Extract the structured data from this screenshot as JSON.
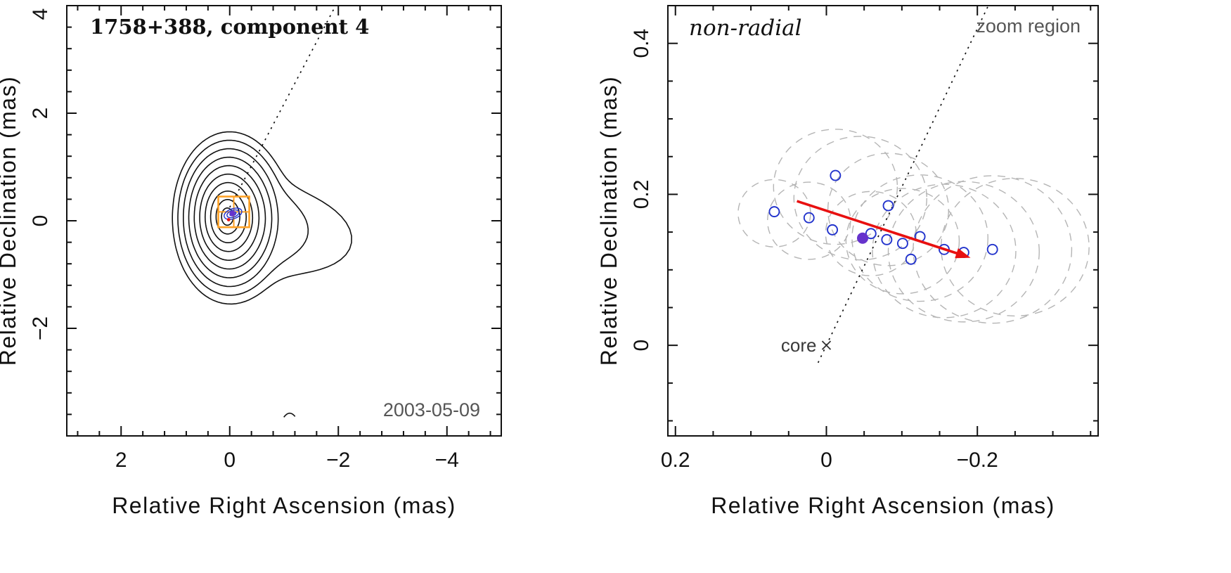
{
  "figure": {
    "description": "Two-panel VLBI jet component kinematics figure",
    "colors": {
      "frame": "#111111",
      "contour": "#111111",
      "zoom_box": "#ffa126",
      "open_point": "#2233cc",
      "filled_point": "#6633cc",
      "error_ellipse": "#b5b5b5",
      "arrow": "#e81010",
      "muted_text": "#565656"
    }
  },
  "chart_data": [
    {
      "type": "contour",
      "title": "1758+388, component 4",
      "date_label": "2003-05-09",
      "xlabel": "Relative Right Ascension (mas)",
      "ylabel": "Relative Declination (mas)",
      "xlim": [
        3,
        -5
      ],
      "ylim": [
        -4,
        4
      ],
      "xticks": {
        "major": [
          2,
          0,
          -2,
          -4
        ],
        "minor_step": 0.4
      },
      "yticks": {
        "major": [
          4,
          2,
          0,
          -2
        ],
        "minor_step": 0.4
      },
      "contours": {
        "center": [
          0.05,
          0.08
        ],
        "n_levels": 10,
        "rx": 1.0,
        "ry": 1.5,
        "east_skew": 0.18,
        "tail": {
          "direction_deg": -12,
          "levels": 2,
          "extra": [
            1.15,
            0.45
          ],
          "width_rad": 0.32
        }
      },
      "zoom_box": {
        "x": [
          0.21,
          -0.36
        ],
        "y": [
          -0.12,
          0.45
        ]
      },
      "inner_component": {
        "center": [
          -0.06,
          0.13
        ],
        "ellipses_rx": [
          0.17,
          0.115,
          0.06
        ],
        "aspect": 0.55,
        "tilt_deg": -20,
        "peak": [
          -0.05,
          0.135
        ],
        "red_mark": [
          0.02,
          0.02
        ]
      },
      "radial_line": [
        [
          0.0,
          0.25
        ],
        [
          -1.95,
          4.0
        ]
      ],
      "bottom_arc": {
        "center": [
          -1.1,
          -3.6
        ]
      }
    },
    {
      "type": "scatter",
      "corner_label": "non-radial",
      "zoom_label": "zoom region",
      "core_label": "core",
      "xlabel": "Relative Right Ascension (mas)",
      "ylabel": "Relative Declination (mas)",
      "xlim": [
        0.21,
        -0.36
      ],
      "ylim": [
        -0.12,
        0.45
      ],
      "xticks": {
        "major": [
          0.2,
          0,
          -0.2
        ],
        "minor_step": 0.05
      },
      "yticks": {
        "major": [
          0,
          0.2,
          0.4
        ],
        "minor_step": 0.05
      },
      "points": [
        [
          0.069,
          0.177
        ],
        [
          0.023,
          0.169
        ],
        [
          -0.012,
          0.225
        ],
        [
          -0.008,
          0.153
        ],
        [
          -0.059,
          0.148
        ],
        [
          -0.082,
          0.185
        ],
        [
          -0.08,
          0.14
        ],
        [
          -0.101,
          0.135
        ],
        [
          -0.124,
          0.144
        ],
        [
          -0.112,
          0.114
        ],
        [
          -0.156,
          0.127
        ],
        [
          -0.182,
          0.123
        ],
        [
          -0.22,
          0.127
        ]
      ],
      "filled_point": [
        -0.048,
        0.142
      ],
      "error_ellipses": [
        [
          0.069,
          0.175,
          0.048
        ],
        [
          0.023,
          0.165,
          0.055
        ],
        [
          -0.012,
          0.21,
          0.082
        ],
        [
          -0.045,
          0.195,
          0.088
        ],
        [
          -0.059,
          0.148,
          0.06
        ],
        [
          -0.082,
          0.18,
          0.08
        ],
        [
          -0.101,
          0.138,
          0.075
        ],
        [
          -0.124,
          0.142,
          0.09
        ],
        [
          -0.156,
          0.125,
          0.095
        ],
        [
          -0.182,
          0.124,
          0.1
        ],
        [
          -0.22,
          0.127,
          0.105
        ],
        [
          -0.25,
          0.13,
          0.098
        ]
      ],
      "arrow": {
        "from": [
          0.039,
          0.191
        ],
        "to": [
          -0.191,
          0.116
        ]
      },
      "radial_line": [
        [
          0.011,
          -0.023
        ],
        [
          -0.215,
          0.451
        ]
      ],
      "core_xy": [
        0.0,
        0.0
      ]
    }
  ]
}
